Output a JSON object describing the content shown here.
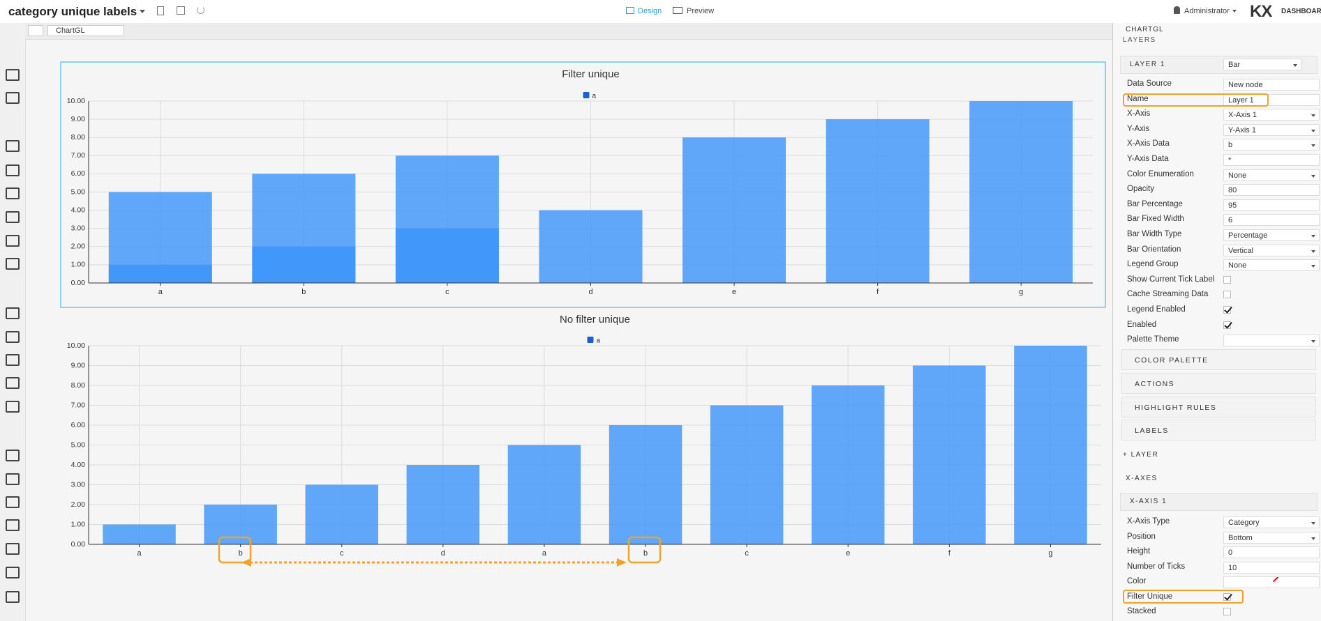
{
  "header": {
    "title": "category unique labels",
    "tabs": [
      "Design",
      "Preview"
    ],
    "user": "Administrator",
    "logo": "KX",
    "product": "DASHBOARDS"
  },
  "breadcrumb": [
    "ChartGL"
  ],
  "chart_data": [
    {
      "type": "bar",
      "title": "Filter unique",
      "filter_unique": true,
      "categories": [
        "a",
        "b",
        "c",
        "d",
        "a",
        "b",
        "c",
        "e",
        "f",
        "g"
      ],
      "series": [
        {
          "name": "a",
          "color": "#3b93fb",
          "values": [
            1,
            2,
            3,
            4,
            5,
            6,
            7,
            8,
            9,
            10
          ]
        }
      ],
      "opacity": 0.8,
      "ylim": [
        0,
        10
      ],
      "yticks": [
        {
          "value": 0,
          "label": "0.00"
        },
        {
          "value": 1,
          "label": "1.00"
        },
        {
          "value": 2,
          "label": "2.00"
        },
        {
          "value": 3,
          "label": "3.00"
        },
        {
          "value": 4,
          "label": "4.00"
        },
        {
          "value": 5,
          "label": "5.00"
        },
        {
          "value": 6,
          "label": "6.00"
        },
        {
          "value": 7,
          "label": "7.00"
        },
        {
          "value": 8,
          "label": "8.00"
        },
        {
          "value": 9,
          "label": "9.00"
        },
        {
          "value": 10,
          "label": "10.00"
        }
      ],
      "grid": true
    },
    {
      "type": "bar",
      "title": "No filter unique",
      "filter_unique": false,
      "categories": [
        "a",
        "b",
        "c",
        "d",
        "a",
        "b",
        "c",
        "e",
        "f",
        "g"
      ],
      "series": [
        {
          "name": "a",
          "color": "#3b93fb",
          "values": [
            1,
            2,
            3,
            4,
            5,
            6,
            7,
            8,
            9,
            10
          ]
        }
      ],
      "opacity": 0.8,
      "ylim": [
        0,
        10
      ],
      "yticks": [
        {
          "value": 0,
          "label": "0.00"
        },
        {
          "value": 1,
          "label": "1.00"
        },
        {
          "value": 2,
          "label": "2.00"
        },
        {
          "value": 3,
          "label": "3.00"
        },
        {
          "value": 4,
          "label": "4.00"
        },
        {
          "value": 5,
          "label": "5.00"
        },
        {
          "value": 6,
          "label": "6.00"
        },
        {
          "value": 7,
          "label": "7.00"
        },
        {
          "value": 8,
          "label": "8.00"
        },
        {
          "value": 9,
          "label": "9.00"
        },
        {
          "value": 10,
          "label": "10.00"
        }
      ],
      "grid": true
    }
  ],
  "panel": {
    "title": "CHARTGL",
    "section": "LAYERS",
    "layer": {
      "name": "LAYER 1",
      "type": "Bar",
      "rows": [
        {
          "label": "Data Source",
          "value": "New node"
        },
        {
          "label": "Name",
          "value": "Layer 1"
        },
        {
          "label": "X-Axis",
          "value": "X-Axis 1",
          "dropdown": true
        },
        {
          "label": "Y-Axis",
          "value": "Y-Axis 1",
          "dropdown": true
        },
        {
          "label": "X-Axis Data",
          "value": "b",
          "dropdown": true
        },
        {
          "label": "Y-Axis Data",
          "value": "*"
        },
        {
          "label": "Color Enumeration",
          "value": "None",
          "dropdown": true
        },
        {
          "label": "Opacity",
          "value": "80"
        },
        {
          "label": "Bar Percentage",
          "value": "95"
        },
        {
          "label": "Bar Fixed Width",
          "value": "6"
        },
        {
          "label": "Bar Width Type",
          "value": "Percentage",
          "dropdown": true
        },
        {
          "label": "Bar Orientation",
          "value": "Vertical",
          "dropdown": true
        },
        {
          "label": "Legend Group",
          "value": "None",
          "dropdown": true
        },
        {
          "label": "Show Current Tick Label",
          "checked": false
        },
        {
          "label": "Cache Streaming Data",
          "checked": false
        },
        {
          "label": "Legend Enabled",
          "checked": true
        },
        {
          "label": "Enabled",
          "checked": true
        },
        {
          "label": "Palette Theme",
          "dropdown": true
        }
      ]
    },
    "subsections": [
      "COLOR PALETTE",
      "ACTIONS",
      "HIGHLIGHT RULES",
      "LABELS"
    ],
    "add_layer": "+ LAYER",
    "axes_section": "X-AXES",
    "axis": {
      "name": "X-AXIS 1",
      "rows": [
        {
          "label": "X-Axis Type",
          "value": "Category",
          "dropdown": true
        },
        {
          "label": "Position",
          "value": "Bottom",
          "dropdown": true
        },
        {
          "label": "Height",
          "value": "0"
        },
        {
          "label": "Number of Ticks",
          "value": "10"
        },
        {
          "label": "Color",
          "color": "#ffffff"
        },
        {
          "label": "Filter Unique",
          "checked": true
        },
        {
          "label": "Stacked",
          "checked": false
        }
      ]
    }
  }
}
